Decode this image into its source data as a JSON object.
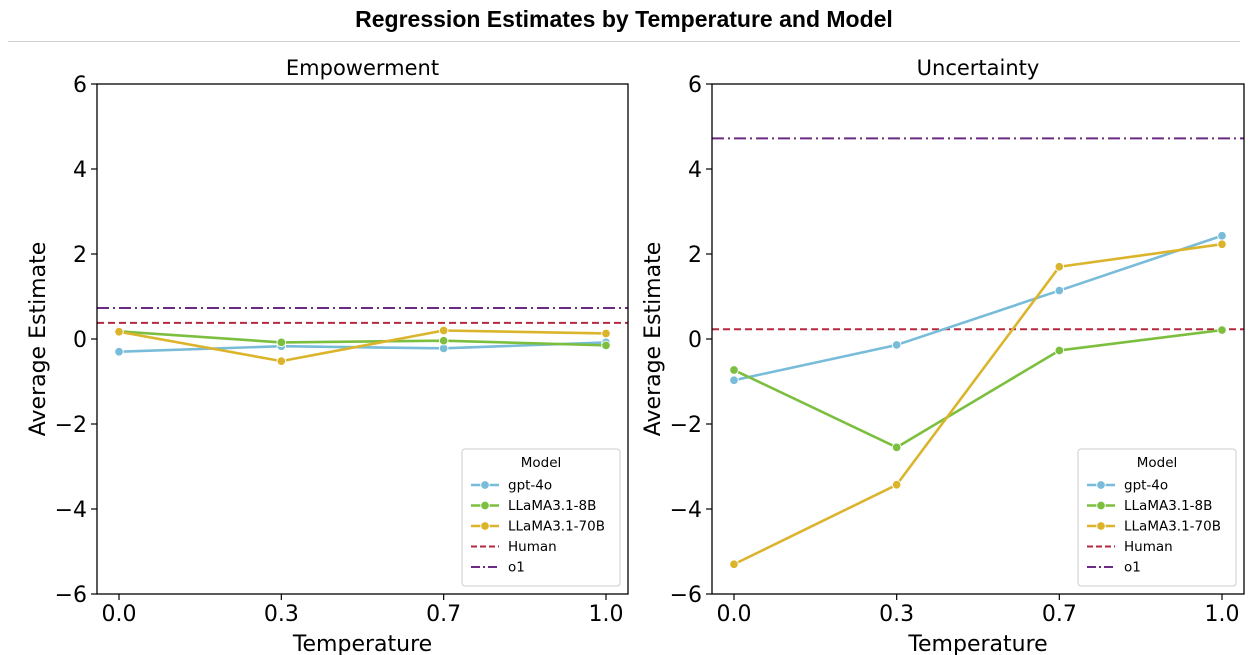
{
  "figure_title": "Regression Estimates by Temperature and Model",
  "chart_data": [
    {
      "type": "line",
      "title": "Empowerment",
      "xlabel": "Temperature",
      "ylabel": "Average Estimate",
      "categories": [
        "0.0",
        "0.3",
        "0.7",
        "1.0"
      ],
      "ylim": [
        -6,
        6
      ],
      "yticks": [
        -6,
        -4,
        -2,
        0,
        2,
        4,
        6
      ],
      "ytick_labels": [
        "−6",
        "−4",
        "−2",
        "0",
        "2",
        "4",
        "6"
      ],
      "grid": false,
      "series": [
        {
          "name": "gpt-4o",
          "values": [
            -0.3,
            -0.17,
            -0.22,
            -0.08
          ]
        },
        {
          "name": "LLaMA3.1-8B",
          "values": [
            0.18,
            -0.08,
            -0.04,
            -0.15
          ]
        },
        {
          "name": "LLaMA3.1-70B",
          "values": [
            0.17,
            -0.52,
            0.2,
            0.13
          ]
        }
      ],
      "reference_lines": [
        {
          "name": "Human",
          "value": 0.38
        },
        {
          "name": "o1",
          "value": 0.73
        }
      ],
      "legend": {
        "title": "Model",
        "position": "lower-right",
        "entries": [
          "gpt-4o",
          "LLaMA3.1-8B",
          "LLaMA3.1-70B",
          "Human",
          "o1"
        ]
      }
    },
    {
      "type": "line",
      "title": "Uncertainty",
      "xlabel": "Temperature",
      "ylabel": "Average Estimate",
      "categories": [
        "0.0",
        "0.3",
        "0.7",
        "1.0"
      ],
      "ylim": [
        -6,
        6
      ],
      "yticks": [
        -6,
        -4,
        -2,
        0,
        2,
        4,
        6
      ],
      "ytick_labels": [
        "−6",
        "−4",
        "−2",
        "0",
        "2",
        "4",
        "6"
      ],
      "grid": false,
      "series": [
        {
          "name": "gpt-4o",
          "values": [
            -0.97,
            -0.14,
            1.14,
            2.43
          ]
        },
        {
          "name": "LLaMA3.1-8B",
          "values": [
            -0.73,
            -2.55,
            -0.27,
            0.21
          ]
        },
        {
          "name": "LLaMA3.1-70B",
          "values": [
            -5.3,
            -3.43,
            1.7,
            2.23
          ]
        }
      ],
      "reference_lines": [
        {
          "name": "Human",
          "value": 0.23
        },
        {
          "name": "o1",
          "value": 4.72
        }
      ],
      "legend": {
        "title": "Model",
        "position": "lower-right",
        "entries": [
          "gpt-4o",
          "LLaMA3.1-8B",
          "LLaMA3.1-70B",
          "Human",
          "o1"
        ]
      }
    }
  ],
  "colors": {
    "gpt-4o": "#78bcd9",
    "LLaMA3.1-8B": "#7cbf3f",
    "LLaMA3.1-70B": "#dcb42c",
    "Human": "#b5293f",
    "o1": "#6b2a83"
  }
}
